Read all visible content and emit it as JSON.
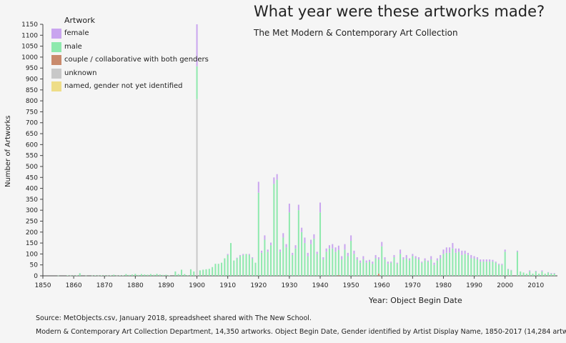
{
  "title": "What year were these artworks made?",
  "subtitle": "The Met Modern & Contemporary Art Collection",
  "footer": {
    "line1": "Source: MetObjects.csv, January 2018, spreadsheet shared with The New School.",
    "line2": "Modern & Contemporary Art Collection Department, 14,350 artworks. Object Begin Date, Gender identified by Artist Display Name, 1850-2017 (14,284 artworks.)"
  },
  "colors": {
    "female": "#c9a5ef",
    "male": "#8ee9ad",
    "couple": "#c98a6c",
    "unknown": "#c8c8c8",
    "named": "#eedd88"
  },
  "chart_data": {
    "type": "bar",
    "stacked": true,
    "title": "What year were these artworks made?",
    "subtitle": "The Met Modern & Contemporary Art Collection",
    "xlabel": "Year: Object Begin Date",
    "ylabel": "Number of Artworks",
    "xlim": [
      1850,
      2017
    ],
    "ylim": [
      0,
      1150
    ],
    "xticks": [
      1850,
      1860,
      1870,
      1880,
      1890,
      1900,
      1910,
      1920,
      1930,
      1940,
      1950,
      1960,
      1970,
      1980,
      1990,
      2000,
      2010
    ],
    "yticks": [
      0,
      50,
      100,
      150,
      200,
      250,
      300,
      350,
      400,
      450,
      500,
      550,
      600,
      650,
      700,
      750,
      800,
      850,
      900,
      950,
      1000,
      1050,
      1100,
      1150
    ],
    "legend": {
      "title": "Artwork",
      "position": "top-left",
      "entries": [
        {
          "key": "female",
          "label": "female"
        },
        {
          "key": "male",
          "label": "male"
        },
        {
          "key": "couple",
          "label": "couple / collaborative with both genders"
        },
        {
          "key": "unknown",
          "label": "unknown"
        },
        {
          "key": "named",
          "label": "named, gender not yet identified"
        }
      ]
    },
    "x": [
      1855,
      1858,
      1859,
      1860,
      1861,
      1862,
      1864,
      1866,
      1867,
      1868,
      1869,
      1870,
      1871,
      1872,
      1873,
      1874,
      1875,
      1876,
      1877,
      1878,
      1879,
      1880,
      1881,
      1882,
      1883,
      1884,
      1885,
      1886,
      1887,
      1888,
      1889,
      1890,
      1891,
      1892,
      1893,
      1894,
      1895,
      1896,
      1897,
      1898,
      1899,
      1900,
      1901,
      1902,
      1903,
      1904,
      1905,
      1906,
      1907,
      1908,
      1909,
      1910,
      1911,
      1912,
      1913,
      1914,
      1915,
      1916,
      1917,
      1918,
      1919,
      1920,
      1921,
      1922,
      1923,
      1924,
      1925,
      1926,
      1927,
      1928,
      1929,
      1930,
      1931,
      1932,
      1933,
      1934,
      1935,
      1936,
      1937,
      1938,
      1939,
      1940,
      1941,
      1942,
      1943,
      1944,
      1945,
      1946,
      1947,
      1948,
      1949,
      1950,
      1951,
      1952,
      1953,
      1954,
      1955,
      1956,
      1957,
      1958,
      1959,
      1960,
      1961,
      1962,
      1963,
      1964,
      1965,
      1966,
      1967,
      1968,
      1969,
      1970,
      1971,
      1972,
      1973,
      1974,
      1975,
      1976,
      1977,
      1978,
      1979,
      1980,
      1981,
      1982,
      1983,
      1984,
      1985,
      1986,
      1987,
      1988,
      1989,
      1990,
      1991,
      1992,
      1993,
      1994,
      1995,
      1996,
      1997,
      1998,
      1999,
      2000,
      2001,
      2002,
      2003,
      2004,
      2005,
      2006,
      2007,
      2008,
      2009,
      2010,
      2011,
      2012,
      2013,
      2014,
      2015,
      2016
    ],
    "series": [
      {
        "name": "female",
        "key": "female",
        "values": [
          0,
          0,
          0,
          0,
          0,
          0,
          0,
          0,
          0,
          0,
          0,
          0,
          0,
          0,
          0,
          0,
          0,
          0,
          0,
          0,
          0,
          0,
          0,
          0,
          0,
          0,
          0,
          0,
          0,
          0,
          0,
          0,
          0,
          0,
          0,
          0,
          0,
          0,
          0,
          0,
          0,
          192,
          0,
          0,
          0,
          0,
          0,
          0,
          0,
          0,
          0,
          5,
          0,
          0,
          3,
          5,
          5,
          0,
          5,
          5,
          0,
          50,
          10,
          20,
          10,
          12,
          30,
          25,
          10,
          20,
          15,
          40,
          10,
          15,
          25,
          20,
          25,
          15,
          20,
          20,
          10,
          45,
          10,
          15,
          15,
          20,
          20,
          20,
          15,
          25,
          15,
          25,
          15,
          10,
          10,
          15,
          10,
          8,
          10,
          15,
          10,
          20,
          10,
          10,
          5,
          10,
          5,
          20,
          10,
          15,
          10,
          10,
          10,
          10,
          5,
          10,
          5,
          15,
          10,
          10,
          15,
          20,
          25,
          25,
          25,
          20,
          15,
          20,
          15,
          10,
          15,
          10,
          10,
          10,
          10,
          10,
          10,
          8,
          5,
          5,
          5,
          10,
          2,
          2,
          0,
          5,
          0,
          0,
          0,
          5,
          0,
          3,
          0,
          5,
          0,
          2,
          3,
          3
        ]
      },
      {
        "name": "male",
        "key": "male",
        "values": [
          1,
          2,
          1,
          1,
          2,
          12,
          1,
          1,
          2,
          1,
          2,
          2,
          1,
          2,
          5,
          1,
          2,
          2,
          8,
          4,
          6,
          9,
          4,
          8,
          6,
          5,
          8,
          5,
          9,
          6,
          4,
          5,
          2,
          0,
          20,
          8,
          28,
          8,
          3,
          30,
          20,
          150,
          25,
          28,
          30,
          32,
          40,
          55,
          55,
          60,
          80,
          95,
          150,
          70,
          80,
          90,
          95,
          100,
          95,
          80,
          60,
          380,
          105,
          165,
          110,
          140,
          420,
          440,
          110,
          175,
          130,
          290,
          95,
          125,
          300,
          200,
          150,
          90,
          145,
          170,
          100,
          290,
          75,
          110,
          125,
          125,
          110,
          115,
          75,
          120,
          90,
          160,
          100,
          75,
          60,
          75,
          60,
          65,
          55,
          80,
          65,
          135,
          75,
          55,
          60,
          85,
          55,
          100,
          75,
          80,
          70,
          90,
          80,
          75,
          60,
          70,
          65,
          75,
          50,
          70,
          80,
          100,
          105,
          105,
          125,
          105,
          110,
          95,
          100,
          95,
          80,
          80,
          75,
          65,
          65,
          65,
          65,
          65,
          60,
          50,
          50,
          110,
          30,
          25,
          0,
          110,
          20,
          15,
          10,
          20,
          10,
          20,
          10,
          20,
          10,
          15,
          10,
          10
        ]
      },
      {
        "name": "couple / collaborative with both genders",
        "key": "couple",
        "values": [
          0,
          0,
          0,
          0,
          0,
          0,
          0,
          0,
          0,
          0,
          0,
          0,
          0,
          0,
          0,
          0,
          0,
          0,
          0,
          0,
          0,
          0,
          0,
          0,
          0,
          0,
          0,
          0,
          0,
          0,
          0,
          0,
          0,
          0,
          0,
          0,
          0,
          0,
          0,
          0,
          0,
          0,
          0,
          0,
          0,
          0,
          0,
          0,
          0,
          0,
          0,
          0,
          0,
          0,
          0,
          0,
          0,
          0,
          0,
          0,
          0,
          0,
          0,
          0,
          0,
          0,
          0,
          0,
          0,
          0,
          0,
          0,
          0,
          0,
          0,
          0,
          0,
          0,
          0,
          0,
          0,
          0,
          0,
          0,
          0,
          0,
          0,
          3,
          0,
          0,
          0,
          0,
          0,
          0,
          0,
          0,
          0,
          0,
          0,
          0,
          10,
          0,
          0,
          0,
          0,
          0,
          0,
          0,
          0,
          0,
          0,
          0,
          0,
          0,
          0,
          0,
          0,
          0,
          0,
          0,
          0,
          0,
          0,
          0,
          0,
          0,
          0,
          0,
          0,
          0,
          0,
          0,
          0,
          0,
          0,
          0,
          0,
          0,
          0,
          0,
          0,
          0,
          0,
          0,
          0,
          0,
          0,
          0,
          0,
          0,
          0,
          0,
          0,
          0,
          0,
          0,
          0,
          0
        ]
      },
      {
        "name": "unknown",
        "key": "unknown",
        "values": [
          0,
          0,
          0,
          0,
          0,
          0,
          0,
          0,
          0,
          0,
          0,
          0,
          0,
          0,
          0,
          0,
          0,
          0,
          0,
          0,
          0,
          0,
          0,
          0,
          0,
          0,
          0,
          0,
          0,
          0,
          0,
          0,
          0,
          0,
          0,
          0,
          0,
          0,
          0,
          0,
          0,
          808,
          0,
          0,
          0,
          0,
          0,
          0,
          0,
          0,
          0,
          0,
          0,
          0,
          0,
          0,
          0,
          0,
          0,
          0,
          0,
          0,
          0,
          0,
          0,
          0,
          0,
          0,
          0,
          0,
          0,
          0,
          0,
          0,
          0,
          0,
          0,
          0,
          0,
          0,
          0,
          0,
          0,
          0,
          0,
          0,
          0,
          0,
          0,
          0,
          0,
          0,
          0,
          0,
          0,
          0,
          0,
          0,
          0,
          0,
          0,
          0,
          0,
          0,
          0,
          0,
          0,
          0,
          0,
          0,
          0,
          0,
          0,
          0,
          0,
          0,
          0,
          0,
          0,
          0,
          0,
          0,
          0,
          0,
          0,
          0,
          0,
          0,
          0,
          0,
          0,
          0,
          0,
          0,
          0,
          0,
          0,
          0,
          0,
          0,
          0,
          0,
          0,
          0,
          0,
          0,
          0,
          0,
          0,
          0,
          0,
          0,
          0,
          0,
          0,
          0,
          0,
          0
        ]
      },
      {
        "name": "named, gender not yet identified",
        "key": "named",
        "values": [
          0,
          0,
          0,
          0,
          0,
          0,
          0,
          0,
          0,
          0,
          0,
          0,
          0,
          0,
          0,
          0,
          0,
          0,
          0,
          0,
          0,
          0,
          0,
          0,
          0,
          0,
          0,
          0,
          0,
          0,
          0,
          0,
          0,
          0,
          0,
          0,
          0,
          0,
          0,
          0,
          0,
          0,
          0,
          0,
          0,
          0,
          0,
          0,
          0,
          0,
          0,
          0,
          0,
          0,
          0,
          0,
          0,
          0,
          0,
          0,
          0,
          0,
          0,
          0,
          0,
          0,
          0,
          0,
          0,
          0,
          0,
          0,
          0,
          0,
          0,
          0,
          0,
          0,
          0,
          0,
          0,
          0,
          0,
          0,
          0,
          0,
          0,
          0,
          0,
          0,
          0,
          0,
          0,
          0,
          0,
          0,
          0,
          0,
          0,
          0,
          0,
          0,
          0,
          0,
          0,
          0,
          0,
          0,
          0,
          0,
          0,
          0,
          0,
          0,
          0,
          0,
          0,
          0,
          0,
          0,
          0,
          0,
          0,
          0,
          0,
          0,
          0,
          0,
          0,
          0,
          0,
          0,
          0,
          0,
          0,
          0,
          0,
          0,
          0,
          0,
          0,
          0,
          0,
          0,
          0,
          0,
          0,
          0,
          0,
          0,
          0,
          0,
          0,
          0,
          0,
          0,
          0,
          0
        ]
      }
    ]
  }
}
